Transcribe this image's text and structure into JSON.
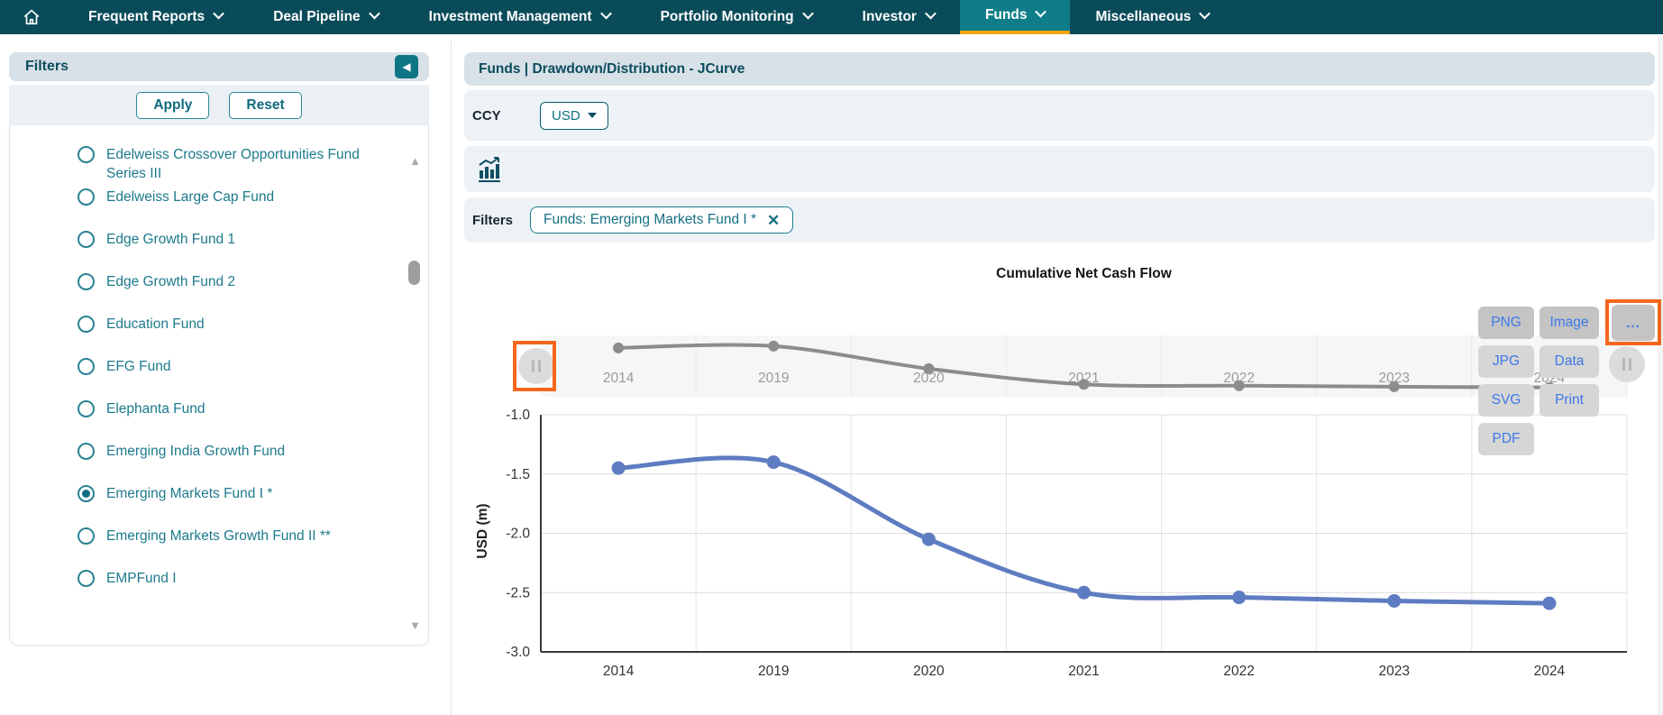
{
  "nav": {
    "items": [
      {
        "label": "Frequent Reports"
      },
      {
        "label": "Deal Pipeline"
      },
      {
        "label": "Investment Management"
      },
      {
        "label": "Portfolio Monitoring"
      },
      {
        "label": "Investor"
      },
      {
        "label": "Funds",
        "active": true
      },
      {
        "label": "Miscellaneous"
      }
    ]
  },
  "sidebar": {
    "title": "Filters",
    "apply_label": "Apply",
    "reset_label": "Reset",
    "funds": [
      {
        "label": "Edelweiss Crossover Opportunities Fund Series III",
        "selected": false
      },
      {
        "label": "Edelweiss Large Cap Fund",
        "selected": false
      },
      {
        "label": "Edge Growth Fund 1",
        "selected": false
      },
      {
        "label": "Edge Growth Fund 2",
        "selected": false
      },
      {
        "label": "Education Fund",
        "selected": false
      },
      {
        "label": "EFG Fund",
        "selected": false
      },
      {
        "label": "Elephanta Fund",
        "selected": false
      },
      {
        "label": "Emerging India Growth Fund",
        "selected": false
      },
      {
        "label": "Emerging Markets Fund I *",
        "selected": true
      },
      {
        "label": "Emerging Markets Growth Fund II **",
        "selected": false
      },
      {
        "label": "EMPFund I",
        "selected": false
      }
    ]
  },
  "main": {
    "title": "Funds | Drawdown/Distribution - JCurve",
    "ccy_label": "CCY",
    "ccy_value": "USD",
    "filters_label": "Filters",
    "filter_chip": "Funds: Emerging Markets Fund I *"
  },
  "export_menu": {
    "col1": [
      "PNG",
      "JPG",
      "SVG",
      "PDF"
    ],
    "col2": [
      "Image",
      "Data",
      "Print"
    ],
    "more_label": "..."
  },
  "chart_data": {
    "type": "line",
    "title": "Cumulative Net Cash Flow",
    "xlabel": "",
    "ylabel": "USD (m)",
    "categories": [
      "2014",
      "2019",
      "2020",
      "2021",
      "2022",
      "2023",
      "2024"
    ],
    "series": [
      {
        "name": "Cumulative Net Cash Flow",
        "values": [
          -1.45,
          -1.4,
          -2.05,
          -2.5,
          -2.54,
          -2.57,
          -2.59
        ]
      }
    ],
    "ylim": [
      -3.0,
      -1.0
    ],
    "yticks": [
      -1.0,
      -1.5,
      -2.0,
      -2.5,
      -3.0
    ],
    "grid": true,
    "legend": "none",
    "has_range_navigator": true
  },
  "colors": {
    "navbar": "#0a4b5a",
    "navbar_active": "#0f7d89",
    "active_underline": "#f2a60c",
    "band_header": "#d8e1e8",
    "band_light": "#edf2f6",
    "teal_text": "#1d7a8c",
    "dark_teal_text": "#0c4c5e",
    "chart_line": "#5e7cc1",
    "navigator_line": "#8c8c8c",
    "export_text": "#3c78e8",
    "annotation_orange": "#f4671c"
  }
}
